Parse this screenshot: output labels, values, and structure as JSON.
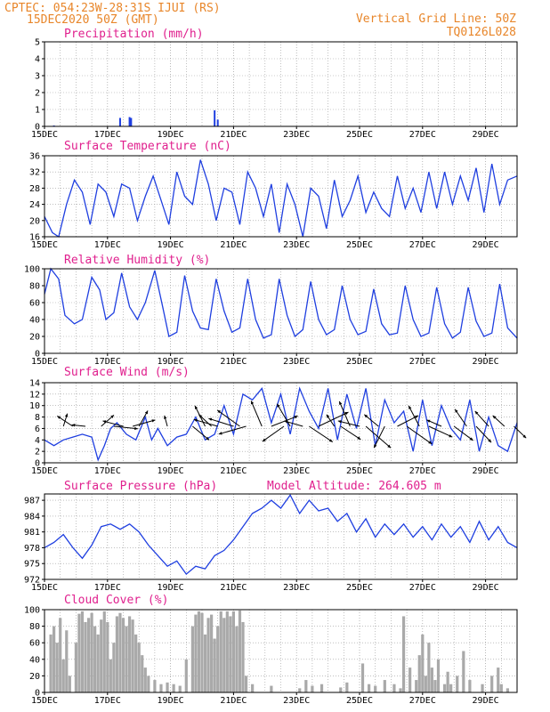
{
  "header": {
    "line1_left": "CPTEC:  054:23W-28:31S  IJUI (RS)",
    "line1_right": "Vertical Grid Line: 50Z",
    "line2_left": "15DEC2020 50Z (GMT)",
    "line2_right": "TQ0126L028"
  },
  "colors": {
    "header": "#e8862a",
    "panel_title": "#e0208e",
    "series": "#1f3fe0",
    "cloud": "#a9a9a9",
    "arrow": "#000000",
    "grid": "#9a9a9a"
  },
  "x_axis": {
    "tick_labels": [
      "15DEC",
      "17DEC",
      "19DEC",
      "21DEC",
      "23DEC",
      "25DEC",
      "27DEC",
      "29DEC"
    ],
    "tick_days": [
      0,
      2,
      4,
      6,
      8,
      10,
      12,
      14
    ],
    "range_days": [
      0,
      15
    ]
  },
  "chart_data": [
    {
      "type": "bar",
      "title": "Precipitation (mm/h)",
      "ylim": [
        0,
        5
      ],
      "yticks": [
        0,
        1,
        2,
        3,
        4,
        5
      ],
      "x": [
        0.3,
        2.4,
        2.7,
        2.75,
        5.4,
        5.5
      ],
      "values": [
        0.05,
        0.5,
        0.55,
        0.5,
        0.95,
        0.4
      ]
    },
    {
      "type": "line",
      "title": "Surface Temperature (nC)",
      "ylim": [
        16,
        36
      ],
      "yticks": [
        16,
        20,
        24,
        28,
        32,
        36
      ],
      "x": [
        0,
        0.25,
        0.45,
        0.7,
        0.95,
        1.2,
        1.45,
        1.7,
        1.95,
        2.2,
        2.45,
        2.7,
        2.95,
        3.2,
        3.45,
        3.7,
        3.95,
        4.2,
        4.45,
        4.7,
        4.95,
        5.2,
        5.45,
        5.7,
        5.95,
        6.2,
        6.45,
        6.7,
        6.95,
        7.2,
        7.45,
        7.7,
        7.95,
        8.2,
        8.45,
        8.7,
        8.95,
        9.2,
        9.45,
        9.7,
        9.95,
        10.2,
        10.45,
        10.7,
        10.95,
        11.2,
        11.45,
        11.7,
        11.95,
        12.2,
        12.45,
        12.7,
        12.95,
        13.2,
        13.45,
        13.7,
        13.95,
        14.2,
        14.45,
        14.7,
        15
      ],
      "values": [
        21,
        17,
        16,
        24,
        30,
        27,
        19,
        29,
        27,
        21,
        29,
        28,
        20,
        26,
        31,
        25,
        19,
        32,
        26,
        24,
        35,
        29,
        20,
        28,
        27,
        19,
        32,
        28,
        21,
        29,
        17,
        29,
        24,
        16,
        28,
        26,
        18,
        30,
        21,
        25,
        31,
        22,
        27,
        23,
        21,
        31,
        23,
        28,
        22,
        32,
        23,
        32,
        24,
        31,
        25,
        33,
        22,
        34,
        24,
        30,
        31
      ]
    },
    {
      "type": "line",
      "title": "Relative Humidity (%)",
      "ylim": [
        0,
        100
      ],
      "yticks": [
        0,
        20,
        40,
        60,
        80,
        100
      ],
      "x": [
        0,
        0.2,
        0.45,
        0.65,
        0.95,
        1.2,
        1.5,
        1.75,
        1.95,
        2.2,
        2.45,
        2.7,
        2.95,
        3.2,
        3.5,
        3.75,
        3.95,
        4.2,
        4.45,
        4.7,
        4.95,
        5.2,
        5.45,
        5.7,
        5.95,
        6.2,
        6.45,
        6.7,
        6.95,
        7.2,
        7.45,
        7.7,
        7.95,
        8.2,
        8.45,
        8.7,
        8.95,
        9.2,
        9.45,
        9.7,
        9.95,
        10.2,
        10.45,
        10.7,
        10.95,
        11.2,
        11.45,
        11.7,
        11.95,
        12.2,
        12.45,
        12.7,
        12.95,
        13.2,
        13.45,
        13.7,
        13.95,
        14.2,
        14.45,
        14.7,
        15
      ],
      "values": [
        70,
        100,
        88,
        45,
        35,
        40,
        90,
        75,
        40,
        48,
        95,
        55,
        40,
        60,
        98,
        55,
        20,
        25,
        92,
        50,
        30,
        28,
        88,
        50,
        25,
        30,
        88,
        40,
        18,
        22,
        88,
        45,
        20,
        28,
        85,
        40,
        22,
        28,
        80,
        40,
        22,
        26,
        76,
        35,
        22,
        24,
        80,
        40,
        20,
        24,
        78,
        35,
        18,
        25,
        78,
        38,
        20,
        24,
        82,
        30,
        18
      ]
    },
    {
      "type": "line",
      "title": "Surface Wind (m/s)",
      "ylim": [
        0,
        14
      ],
      "yticks": [
        0,
        2,
        4,
        6,
        8,
        10,
        12,
        14
      ],
      "x": [
        0,
        0.3,
        0.6,
        0.9,
        1.2,
        1.5,
        1.7,
        1.9,
        2.1,
        2.3,
        2.6,
        2.9,
        3.2,
        3.4,
        3.6,
        3.9,
        4.2,
        4.5,
        4.8,
        5.1,
        5.4,
        5.7,
        6.0,
        6.3,
        6.6,
        6.9,
        7.2,
        7.5,
        7.8,
        8.1,
        8.4,
        8.7,
        9.0,
        9.3,
        9.6,
        9.9,
        10.2,
        10.5,
        10.8,
        11.1,
        11.4,
        11.7,
        12.0,
        12.3,
        12.6,
        12.9,
        13.2,
        13.5,
        13.8,
        14.1,
        14.4,
        14.7,
        15
      ],
      "values": [
        4,
        3,
        4,
        4.5,
        5,
        4.5,
        0.5,
        3,
        6,
        7,
        5,
        4,
        8,
        4,
        6,
        3,
        4.5,
        5,
        8,
        4,
        5,
        10,
        5,
        12,
        11,
        13,
        7,
        12,
        5,
        13,
        9,
        6,
        13,
        4,
        12,
        6,
        13,
        3,
        11,
        7,
        9,
        2,
        11,
        3,
        10,
        6,
        4,
        11,
        2,
        8,
        3,
        2,
        7
      ],
      "wind_arrows": [
        {
          "day": 0.6,
          "u": 0.8,
          "v": 2.6
        },
        {
          "day": 0.9,
          "u": -3.2,
          "v": 2.1
        },
        {
          "day": 1.3,
          "u": -2.8,
          "v": 0.3
        },
        {
          "day": 1.8,
          "u": 2.6,
          "v": 2.3
        },
        {
          "day": 2.2,
          "u": 4.9,
          "v": -0.5
        },
        {
          "day": 2.5,
          "u": -4.2,
          "v": 1.1
        },
        {
          "day": 2.8,
          "u": 4.6,
          "v": 1.3
        },
        {
          "day": 3.0,
          "u": 1.8,
          "v": 3.2
        },
        {
          "day": 3.9,
          "u": -0.6,
          "v": 2.2
        },
        {
          "day": 4.7,
          "u": 3.4,
          "v": -2.8
        },
        {
          "day": 5.1,
          "u": -2.1,
          "v": 4.2
        },
        {
          "day": 5.3,
          "u": -2.6,
          "v": 2.4
        },
        {
          "day": 5.5,
          "u": -4.9,
          "v": 1.4
        },
        {
          "day": 6.0,
          "u": -5.1,
          "v": 1.6
        },
        {
          "day": 6.2,
          "u": -4.6,
          "v": 3.3
        },
        {
          "day": 6.4,
          "u": -5.6,
          "v": -1.6
        },
        {
          "day": 6.9,
          "u": -2.2,
          "v": 5.2
        },
        {
          "day": 7.2,
          "u": 5.4,
          "v": 2.1
        },
        {
          "day": 7.6,
          "u": -4.4,
          "v": -3.1
        },
        {
          "day": 7.8,
          "u": -2.7,
          "v": 4.6
        },
        {
          "day": 8.2,
          "u": -3.8,
          "v": 1.1
        },
        {
          "day": 8.4,
          "u": 4.8,
          "v": -3.2
        },
        {
          "day": 8.7,
          "u": 6.1,
          "v": 2.9
        },
        {
          "day": 9.2,
          "u": -1.6,
          "v": 2.4
        },
        {
          "day": 9.4,
          "u": 4.1,
          "v": -2.7
        },
        {
          "day": 9.7,
          "u": -2.2,
          "v": 5.1
        },
        {
          "day": 10.0,
          "u": -4.4,
          "v": 1.1
        },
        {
          "day": 10.2,
          "u": 5.1,
          "v": -4.4
        },
        {
          "day": 10.6,
          "u": -2.9,
          "v": 2.4
        },
        {
          "day": 10.8,
          "u": -2.2,
          "v": -4.4
        },
        {
          "day": 11.2,
          "u": 4.3,
          "v": 2.2
        },
        {
          "day": 11.5,
          "u": 5.1,
          "v": -3.6
        },
        {
          "day": 11.9,
          "u": -2.2,
          "v": 4.2
        },
        {
          "day": 12.2,
          "u": 4.8,
          "v": -2.2
        },
        {
          "day": 12.6,
          "u": -3.0,
          "v": 1.3
        },
        {
          "day": 13.0,
          "u": 3.9,
          "v": -2.9
        },
        {
          "day": 13.4,
          "u": -2.4,
          "v": 3.5
        },
        {
          "day": 13.7,
          "u": 3.1,
          "v": -3.3
        },
        {
          "day": 14.1,
          "u": -2.8,
          "v": 3.1
        },
        {
          "day": 14.6,
          "u": -2.4,
          "v": 2.2
        },
        {
          "day": 14.9,
          "u": 2.5,
          "v": -2.4
        }
      ]
    },
    {
      "type": "line",
      "title": "Surface Pressure (hPa)",
      "annotation": "Model Altitude: 264.605 m",
      "ylim": [
        972,
        988.2
      ],
      "yticks": [
        972,
        975,
        978,
        981,
        984,
        987
      ],
      "x": [
        0,
        0.3,
        0.6,
        0.9,
        1.2,
        1.5,
        1.8,
        2.1,
        2.4,
        2.7,
        3.0,
        3.3,
        3.6,
        3.9,
        4.2,
        4.5,
        4.8,
        5.1,
        5.4,
        5.7,
        6.0,
        6.3,
        6.6,
        6.9,
        7.2,
        7.5,
        7.8,
        8.1,
        8.4,
        8.7,
        9.0,
        9.3,
        9.6,
        9.9,
        10.2,
        10.5,
        10.8,
        11.1,
        11.4,
        11.7,
        12.0,
        12.3,
        12.6,
        12.9,
        13.2,
        13.5,
        13.8,
        14.1,
        14.4,
        14.7,
        15
      ],
      "values": [
        978,
        979,
        980.5,
        978,
        976,
        978.5,
        982,
        982.5,
        981.5,
        982.5,
        981,
        978.5,
        976.5,
        974.5,
        975.5,
        973,
        974.5,
        974,
        976.5,
        977.5,
        979.5,
        982,
        984.5,
        985.5,
        987,
        985.5,
        988,
        984.5,
        987,
        985,
        985.5,
        983,
        984.5,
        981,
        983.5,
        980,
        982.5,
        980.5,
        982.5,
        980,
        982,
        979.5,
        982.5,
        980,
        982,
        979,
        983,
        979.5,
        982,
        979,
        978
      ]
    },
    {
      "type": "bar",
      "title": "Cloud Cover (%)",
      "ylim": [
        0,
        100
      ],
      "yticks": [
        0,
        20,
        40,
        60,
        80,
        100
      ],
      "x": [
        0.2,
        0.3,
        0.4,
        0.5,
        0.6,
        0.7,
        0.8,
        1.0,
        1.1,
        1.2,
        1.3,
        1.4,
        1.5,
        1.6,
        1.7,
        1.8,
        1.9,
        2.0,
        2.1,
        2.2,
        2.3,
        2.4,
        2.5,
        2.6,
        2.7,
        2.8,
        2.9,
        3.0,
        3.1,
        3.2,
        3.3,
        3.5,
        3.7,
        3.9,
        4.1,
        4.3,
        4.5,
        4.7,
        4.8,
        4.9,
        5.0,
        5.1,
        5.2,
        5.3,
        5.4,
        5.5,
        5.6,
        5.7,
        5.8,
        5.9,
        6.0,
        6.1,
        6.2,
        6.3,
        6.4,
        6.6,
        7.2,
        8.1,
        8.3,
        8.5,
        8.8,
        9.4,
        9.6,
        10.1,
        10.3,
        10.5,
        10.8,
        11.1,
        11.3,
        11.4,
        11.6,
        11.8,
        11.9,
        12.0,
        12.1,
        12.2,
        12.3,
        12.4,
        12.5,
        12.7,
        12.8,
        12.9,
        13.1,
        13.3,
        13.5,
        13.9,
        14.2,
        14.4,
        14.5,
        14.7
      ],
      "values": [
        70,
        80,
        60,
        90,
        40,
        75,
        20,
        60,
        95,
        98,
        85,
        90,
        96,
        80,
        70,
        88,
        98,
        85,
        40,
        60,
        92,
        96,
        90,
        80,
        92,
        88,
        70,
        60,
        45,
        30,
        20,
        15,
        10,
        12,
        10,
        8,
        40,
        80,
        94,
        98,
        96,
        70,
        90,
        94,
        65,
        80,
        98,
        90,
        98,
        92,
        98,
        80,
        99,
        85,
        20,
        10,
        8,
        5,
        15,
        8,
        10,
        6,
        12,
        35,
        10,
        8,
        15,
        10,
        5,
        92,
        30,
        15,
        45,
        70,
        20,
        60,
        30,
        15,
        40,
        10,
        25,
        10,
        20,
        50,
        15,
        10,
        20,
        30,
        10,
        5
      ]
    }
  ]
}
